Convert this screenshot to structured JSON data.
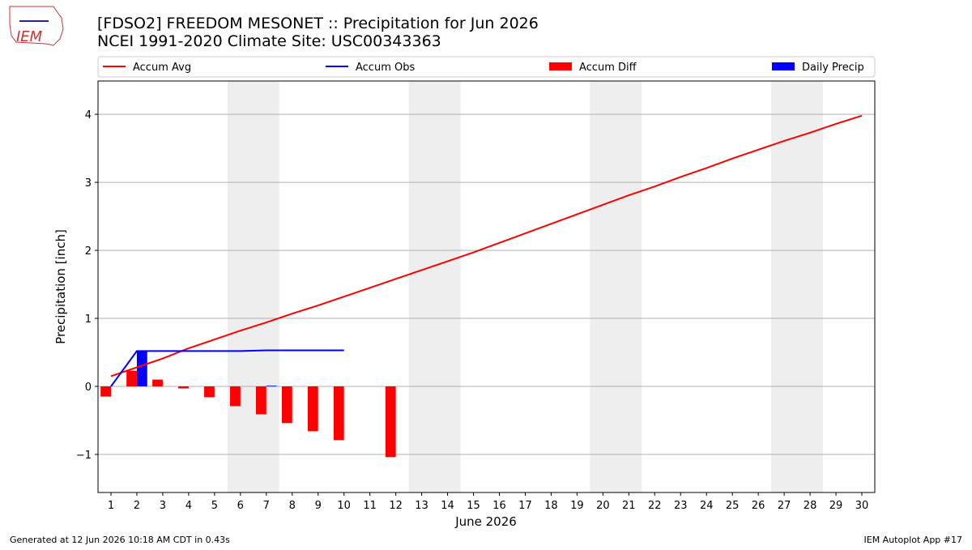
{
  "chart_data": {
    "type": "combo",
    "title": "[FDSO2] FREEDOM MESONET :: Precipitation for Jun 2026",
    "subtitle": "NCEI 1991-2020 Climate Site: USC00343363",
    "x_label": "June 2026",
    "y_label": "Precipitation [inch]",
    "x": [
      1,
      2,
      3,
      4,
      5,
      6,
      7,
      8,
      9,
      10,
      11,
      12,
      13,
      14,
      15,
      16,
      17,
      18,
      19,
      20,
      21,
      22,
      23,
      24,
      25,
      26,
      27,
      28,
      29,
      30
    ],
    "xlim": [
      0.5,
      30.5
    ],
    "xticks": [
      1,
      2,
      3,
      4,
      5,
      6,
      7,
      8,
      9,
      10,
      11,
      12,
      13,
      14,
      15,
      16,
      17,
      18,
      19,
      20,
      21,
      22,
      23,
      24,
      25,
      26,
      27,
      28,
      29,
      30
    ],
    "ylim": [
      -1.56,
      4.49
    ],
    "yticks": [
      {
        "value": -1,
        "label": "−1"
      },
      0,
      1,
      2,
      3,
      4
    ],
    "grid": true,
    "legend": "top",
    "shaded_spans": [
      [
        5.5,
        7.5
      ],
      [
        12.5,
        14.5
      ],
      [
        19.5,
        21.5
      ],
      [
        26.5,
        28.5
      ]
    ],
    "series": [
      {
        "name": "Accum Avg",
        "kind": "line",
        "color": "#ff0000",
        "values": [
          0.15,
          0.28,
          0.41,
          0.56,
          0.69,
          0.82,
          0.94,
          1.07,
          1.19,
          1.32,
          1.45,
          1.58,
          1.71,
          1.84,
          1.97,
          2.11,
          2.25,
          2.39,
          2.53,
          2.67,
          2.81,
          2.94,
          3.08,
          3.21,
          3.35,
          3.48,
          3.61,
          3.73,
          3.86,
          3.98
        ]
      },
      {
        "name": "Accum Obs",
        "kind": "line",
        "color": "#0000ff",
        "values": [
          0,
          0.52,
          0.52,
          0.52,
          0.52,
          0.52,
          0.53,
          0.53,
          0.53,
          0.53,
          null,
          null,
          null,
          null,
          null,
          null,
          null,
          null,
          null,
          null,
          null,
          null,
          null,
          null,
          null,
          null,
          null,
          null,
          null,
          null
        ]
      },
      {
        "name": "Accum Diff",
        "kind": "bar",
        "offset": -0.2,
        "color": "#ff0000",
        "values": [
          -0.15,
          0.23,
          0.1,
          -0.03,
          -0.16,
          -0.29,
          -0.41,
          -0.54,
          -0.66,
          -0.79,
          null,
          -1.04,
          null,
          null,
          null,
          null,
          null,
          null,
          null,
          null,
          null,
          null,
          null,
          null,
          null,
          null,
          null,
          null,
          null,
          null
        ]
      },
      {
        "name": "Daily Precip",
        "kind": "bar",
        "offset": 0.2,
        "color": "#0000ff",
        "values": [
          0,
          0.52,
          0,
          0,
          0,
          0,
          0.01,
          0,
          0,
          0,
          null,
          0,
          null,
          null,
          null,
          null,
          null,
          null,
          null,
          null,
          null,
          null,
          null,
          null,
          null,
          null,
          null,
          null,
          null,
          null
        ]
      }
    ]
  },
  "logo_text": "IEM",
  "footer_left": "Generated at 12 Jun 2026 10:18 AM CDT in 0.43s",
  "footer_right": "IEM Autoplot App #17"
}
